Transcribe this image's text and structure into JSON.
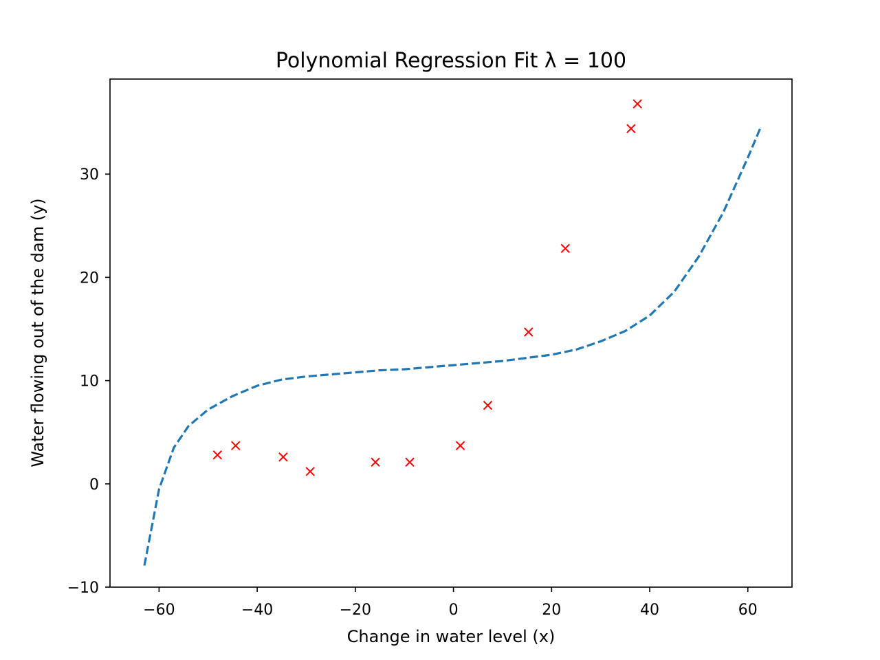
{
  "chart_data": {
    "type": "scatter",
    "title": "Polynomial Regression Fit λ = 100",
    "xlabel": "Change in water level (x)",
    "ylabel": "Water flowing out of the dam (y)",
    "xlim": [
      -70,
      69
    ],
    "ylim": [
      -10,
      39.2
    ],
    "x_ticks": [
      -60,
      -40,
      -20,
      0,
      20,
      40,
      60
    ],
    "y_ticks": [
      -10,
      0,
      10,
      20,
      30
    ],
    "x_tick_labels": [
      "−60",
      "−40",
      "−20",
      "0",
      "20",
      "40",
      "60"
    ],
    "y_tick_labels": [
      "−10",
      "0",
      "10",
      "20",
      "30"
    ],
    "grid": false,
    "legend": "none",
    "series": [
      {
        "kind": "points",
        "marker": "x",
        "color": "#ff0000",
        "points": [
          {
            "x": -48.1,
            "y": 2.8
          },
          {
            "x": -44.4,
            "y": 3.7
          },
          {
            "x": -34.7,
            "y": 2.6
          },
          {
            "x": -29.2,
            "y": 1.2
          },
          {
            "x": -15.9,
            "y": 2.1
          },
          {
            "x": -8.9,
            "y": 2.1
          },
          {
            "x": 1.4,
            "y": 3.7
          },
          {
            "x": 7.0,
            "y": 7.6
          },
          {
            "x": 15.3,
            "y": 14.7
          },
          {
            "x": 22.8,
            "y": 22.8
          },
          {
            "x": 36.2,
            "y": 34.4
          },
          {
            "x": 37.5,
            "y": 36.8
          }
        ]
      },
      {
        "kind": "line",
        "style": "dashed",
        "color": "#1f77b4",
        "points": [
          {
            "x": -63,
            "y": -7.9
          },
          {
            "x": -60,
            "y": -0.5
          },
          {
            "x": -57,
            "y": 3.5
          },
          {
            "x": -54,
            "y": 5.6
          },
          {
            "x": -50,
            "y": 7.2
          },
          {
            "x": -45,
            "y": 8.5
          },
          {
            "x": -40,
            "y": 9.5
          },
          {
            "x": -35,
            "y": 10.1
          },
          {
            "x": -30,
            "y": 10.4
          },
          {
            "x": -25,
            "y": 10.6
          },
          {
            "x": -20,
            "y": 10.8
          },
          {
            "x": -15,
            "y": 11.0
          },
          {
            "x": -10,
            "y": 11.1
          },
          {
            "x": -5,
            "y": 11.3
          },
          {
            "x": 0,
            "y": 11.5
          },
          {
            "x": 5,
            "y": 11.7
          },
          {
            "x": 10,
            "y": 11.9
          },
          {
            "x": 15,
            "y": 12.2
          },
          {
            "x": 20,
            "y": 12.5
          },
          {
            "x": 25,
            "y": 13.0
          },
          {
            "x": 30,
            "y": 13.8
          },
          {
            "x": 35,
            "y": 14.8
          },
          {
            "x": 40,
            "y": 16.3
          },
          {
            "x": 45,
            "y": 18.6
          },
          {
            "x": 50,
            "y": 22.0
          },
          {
            "x": 55,
            "y": 26.3
          },
          {
            "x": 60,
            "y": 31.6
          },
          {
            "x": 62.5,
            "y": 34.4
          }
        ]
      }
    ]
  }
}
